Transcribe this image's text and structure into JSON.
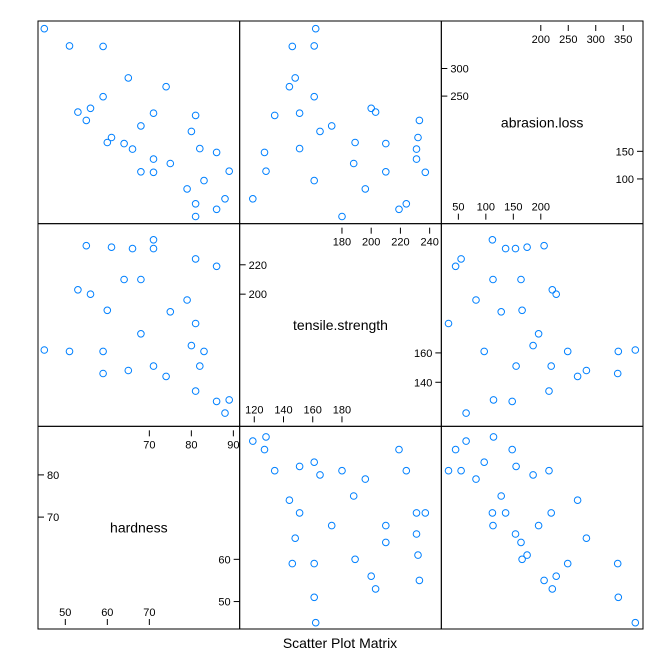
{
  "chart_data": {
    "type": "scatter",
    "subtype": "scatter-plot-matrix",
    "xlabel": "Scatter Plot Matrix",
    "point_color": "#0080ff",
    "variables": [
      {
        "name": "hardness",
        "range": [
          43.5,
          91.5
        ],
        "ticks_low": [
          "50",
          "60",
          "70"
        ],
        "ticks_high": [
          "70",
          "80",
          "90"
        ]
      },
      {
        "name": "tensile.strength",
        "range": [
          110,
          248
        ],
        "ticks_low": [
          "120",
          "140",
          "160",
          "180"
        ],
        "ticks_high": [
          "180",
          "200",
          "220",
          "240"
        ]
      },
      {
        "name": "abrasion.loss",
        "range": [
          19,
          386
        ],
        "ticks_low": [
          "50",
          "100",
          "150",
          "200"
        ],
        "ticks_high": [
          "200",
          "250",
          "300",
          "350"
        ]
      }
    ],
    "points": [
      {
        "hardness": 45,
        "tensile.strength": 162,
        "abrasion.loss": 372
      },
      {
        "hardness": 55,
        "tensile.strength": 233,
        "abrasion.loss": 206
      },
      {
        "hardness": 61,
        "tensile.strength": 232,
        "abrasion.loss": 175
      },
      {
        "hardness": 66,
        "tensile.strength": 231,
        "abrasion.loss": 154
      },
      {
        "hardness": 71,
        "tensile.strength": 231,
        "abrasion.loss": 136
      },
      {
        "hardness": 71,
        "tensile.strength": 237,
        "abrasion.loss": 112
      },
      {
        "hardness": 81,
        "tensile.strength": 224,
        "abrasion.loss": 55
      },
      {
        "hardness": 86,
        "tensile.strength": 219,
        "abrasion.loss": 45
      },
      {
        "hardness": 53,
        "tensile.strength": 203,
        "abrasion.loss": 221
      },
      {
        "hardness": 60,
        "tensile.strength": 189,
        "abrasion.loss": 166
      },
      {
        "hardness": 64,
        "tensile.strength": 210,
        "abrasion.loss": 164
      },
      {
        "hardness": 68,
        "tensile.strength": 210,
        "abrasion.loss": 113
      },
      {
        "hardness": 79,
        "tensile.strength": 196,
        "abrasion.loss": 82
      },
      {
        "hardness": 81,
        "tensile.strength": 180,
        "abrasion.loss": 32
      },
      {
        "hardness": 56,
        "tensile.strength": 200,
        "abrasion.loss": 228
      },
      {
        "hardness": 68,
        "tensile.strength": 173,
        "abrasion.loss": 196
      },
      {
        "hardness": 75,
        "tensile.strength": 188,
        "abrasion.loss": 128
      },
      {
        "hardness": 83,
        "tensile.strength": 161,
        "abrasion.loss": 97
      },
      {
        "hardness": 88,
        "tensile.strength": 119,
        "abrasion.loss": 64
      },
      {
        "hardness": 59,
        "tensile.strength": 161,
        "abrasion.loss": 249
      },
      {
        "hardness": 71,
        "tensile.strength": 151,
        "abrasion.loss": 219
      },
      {
        "hardness": 80,
        "tensile.strength": 165,
        "abrasion.loss": 186
      },
      {
        "hardness": 82,
        "tensile.strength": 151,
        "abrasion.loss": 155
      },
      {
        "hardness": 89,
        "tensile.strength": 128,
        "abrasion.loss": 114
      },
      {
        "hardness": 51,
        "tensile.strength": 161,
        "abrasion.loss": 341
      },
      {
        "hardness": 59,
        "tensile.strength": 146,
        "abrasion.loss": 340
      },
      {
        "hardness": 65,
        "tensile.strength": 148,
        "abrasion.loss": 283
      },
      {
        "hardness": 74,
        "tensile.strength": 144,
        "abrasion.loss": 267
      },
      {
        "hardness": 81,
        "tensile.strength": 134,
        "abrasion.loss": 215
      },
      {
        "hardness": 86,
        "tensile.strength": 127,
        "abrasion.loss": 148
      }
    ]
  }
}
